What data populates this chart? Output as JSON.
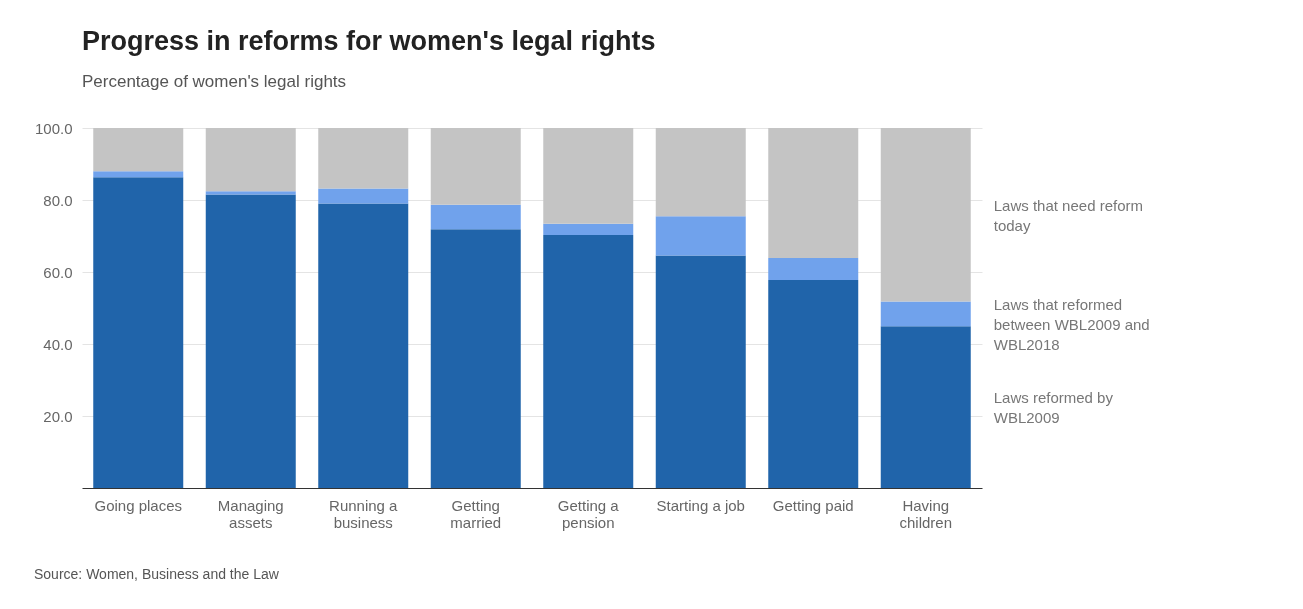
{
  "chart_data": {
    "type": "bar",
    "title": "Progress in reforms for women's legal rights",
    "subtitle": "Percentage of women's legal rights",
    "categories": [
      "Going places",
      "Managing assets",
      "Running a business",
      "Getting married",
      "Getting a pension",
      "Starting a job",
      "Getting paid",
      "Having children"
    ],
    "stacked": true,
    "series": [
      {
        "name": "Laws reformed by WBL2009",
        "color": "#2064aa",
        "values": [
          86.3,
          81.5,
          79.0,
          71.9,
          70.3,
          64.6,
          57.8,
          44.9
        ]
      },
      {
        "name": "Laws that reformed between WBL2009 and WBL2018",
        "color": "#70a2ec",
        "values": [
          1.7,
          0.9,
          4.2,
          6.8,
          3.1,
          10.9,
          6.1,
          6.9
        ]
      },
      {
        "name": "Laws that need reform today",
        "color": "#c4c4c4",
        "values": [
          12.0,
          17.6,
          16.8,
          21.3,
          26.6,
          24.5,
          36.1,
          48.2
        ]
      }
    ],
    "ylim": [
      0,
      100
    ],
    "yticks": [
      {
        "value": 20,
        "label": "20.0"
      },
      {
        "value": 40,
        "label": "40.0"
      },
      {
        "value": 60,
        "label": "60.0"
      },
      {
        "value": 80,
        "label": "80.0"
      },
      {
        "value": 100,
        "label": "100.0"
      }
    ],
    "grid": "y",
    "legend": "right",
    "annotations": [
      "Source: Women, Business and the Law"
    ]
  }
}
